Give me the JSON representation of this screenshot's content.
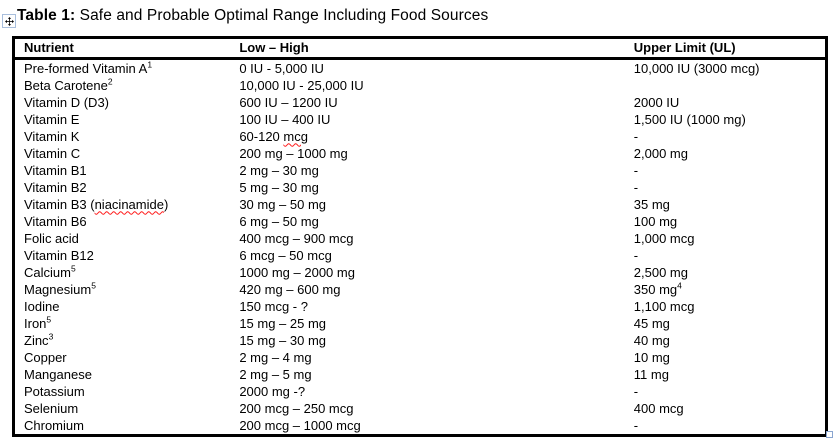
{
  "title": {
    "label": "Table 1:",
    "text": " Safe and Probable Optimal Range Including Food Sources"
  },
  "icons": {
    "move_handle": "table-move-icon",
    "resize_handle": "table-resize-icon"
  },
  "colors": {
    "table_border": "#000000",
    "squiggle": "#ff1a1a",
    "handle_border": "#a8bedc",
    "text": "#000000",
    "background": "#ffffff"
  },
  "table": {
    "headers": [
      "Nutrient",
      "Low – High",
      "Upper Limit (UL)"
    ],
    "rows": [
      {
        "nutrient": "Pre-formed Vitamin A",
        "nutrient_sup": "1",
        "range": "0 IU - 5,000 IU",
        "upper_limit": "10,000 IU (3000 mcg)"
      },
      {
        "nutrient": "Beta Carotene",
        "nutrient_sup": "2",
        "range": "10,000 IU - 25,000 IU",
        "upper_limit": ""
      },
      {
        "nutrient": "Vitamin D (D3)",
        "range": "600 IU – 1200 IU",
        "upper_limit": "2000 IU"
      },
      {
        "nutrient": "Vitamin E",
        "range": "100 IU – 400 IU",
        "upper_limit": "1,500 IU (1000 mg)"
      },
      {
        "nutrient": "Vitamin K",
        "range": "60-120 mcg",
        "range_misspelled": "mcg",
        "upper_limit": "-"
      },
      {
        "nutrient": "Vitamin C",
        "range": "200 mg – 1000 mg",
        "upper_limit": "2,000 mg"
      },
      {
        "nutrient": "Vitamin B1",
        "range": "2 mg – 30 mg",
        "upper_limit": "-"
      },
      {
        "nutrient": "Vitamin B2",
        "range": "5 mg – 30 mg",
        "upper_limit": "-"
      },
      {
        "nutrient": "Vitamin B3 (niacinamide)",
        "nutrient_misspelled": "niacinamide",
        "range": "30 mg – 50 mg",
        "upper_limit": "35 mg"
      },
      {
        "nutrient": "Vitamin B6",
        "range": "6 mg – 50 mg",
        "upper_limit": "100 mg"
      },
      {
        "nutrient": "Folic acid",
        "range": "400 mcg – 900 mcg",
        "upper_limit": "1,000 mcg"
      },
      {
        "nutrient": "Vitamin B12",
        "range": "6 mcg – 50 mcg",
        "upper_limit": "-"
      },
      {
        "nutrient": "Calcium",
        "nutrient_sup": "5",
        "range": "1000 mg – 2000 mg",
        "upper_limit": "2,500 mg"
      },
      {
        "nutrient": "Magnesium",
        "nutrient_sup": "5",
        "range": "420 mg – 600 mg",
        "upper_limit": "350 mg",
        "upper_limit_sup": "4"
      },
      {
        "nutrient": "Iodine",
        "range": "150 mcg - ?",
        "upper_limit": "1,100 mcg"
      },
      {
        "nutrient": "Iron",
        "nutrient_sup": "5",
        "range": "15 mg – 25 mg",
        "upper_limit": "45 mg"
      },
      {
        "nutrient": "Zinc",
        "nutrient_sup": "3",
        "range": "15 mg – 30 mg",
        "upper_limit": "40 mg"
      },
      {
        "nutrient": "Copper",
        "range": "2 mg – 4 mg",
        "upper_limit": "10 mg"
      },
      {
        "nutrient": "Manganese",
        "range": "2 mg – 5 mg",
        "upper_limit": "11 mg"
      },
      {
        "nutrient": "Potassium",
        "range": "2000 mg -?",
        "upper_limit": "-"
      },
      {
        "nutrient": "Selenium",
        "range": "200 mcg – 250 mcg",
        "upper_limit": "400 mcg"
      },
      {
        "nutrient": "Chromium",
        "range": "200 mcg – 1000 mcg",
        "upper_limit": "-"
      }
    ]
  }
}
